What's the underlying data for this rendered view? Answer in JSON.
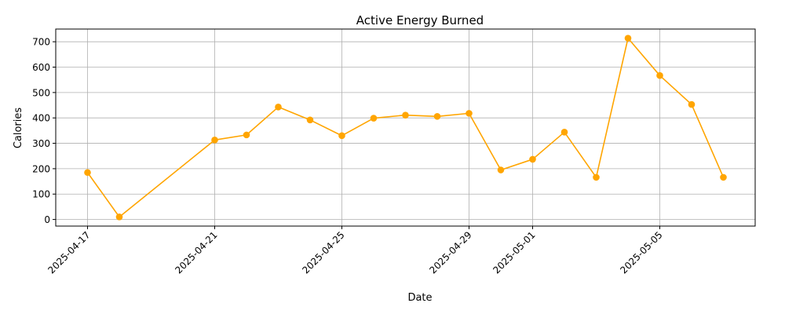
{
  "chart_data": {
    "type": "line",
    "title": "Active Energy Burned",
    "xlabel": "Date",
    "ylabel": "Calories",
    "x": [
      "2025-04-17",
      "2025-04-18",
      "2025-04-21",
      "2025-04-22",
      "2025-04-23",
      "2025-04-24",
      "2025-04-25",
      "2025-04-26",
      "2025-04-27",
      "2025-04-28",
      "2025-04-29",
      "2025-04-30",
      "2025-05-01",
      "2025-05-02",
      "2025-05-03",
      "2025-05-04",
      "2025-05-05",
      "2025-05-06",
      "2025-05-07"
    ],
    "series": [
      {
        "values": [
          185,
          10,
          313,
          333,
          443,
          392,
          330,
          399,
          411,
          406,
          418,
          195,
          237,
          344,
          166,
          714,
          567,
          453,
          166
        ],
        "color": "#ffa500",
        "marker": "circle"
      }
    ],
    "xticks": [
      "2025-04-17",
      "2025-04-21",
      "2025-04-25",
      "2025-04-29",
      "2025-05-01",
      "2025-05-05"
    ],
    "yticks": [
      0,
      100,
      200,
      300,
      400,
      500,
      600,
      700
    ],
    "xlim": [
      "2025-04-16",
      "2025-05-08"
    ],
    "ylim": [
      -26,
      750
    ],
    "grid": true,
    "colors": {
      "grid": "#b0b0b0",
      "axis": "#000000"
    }
  }
}
